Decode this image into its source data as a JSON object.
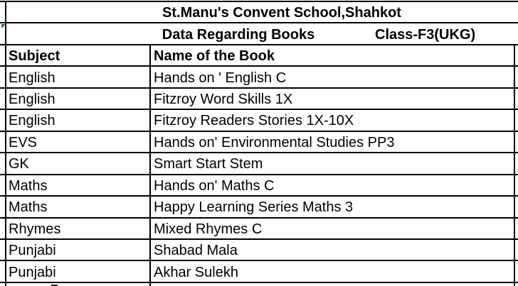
{
  "sheet": {
    "title": "St.Manu's Convent School,Shahkot",
    "subtitle": "Data Regarding Books",
    "class_label": "Class-F3(UKG)",
    "columns": [
      "Subject",
      "Name of the Book"
    ],
    "rows": [
      {
        "subject": "English",
        "book": "Hands on ' English C"
      },
      {
        "subject": "English",
        "book": "Fitzroy Word Skills 1X"
      },
      {
        "subject": "English",
        "book": "Fitzroy Readers Stories 1X-10X"
      },
      {
        "subject": "EVS",
        "book": "Hands on' Environmental Studies PP3"
      },
      {
        "subject": "GK",
        "book": "Smart Start Stem"
      },
      {
        "subject": "Maths",
        "book": "Hands on' Maths C"
      },
      {
        "subject": "Maths",
        "book": "Happy Learning Series Maths 3"
      },
      {
        "subject": "Rhymes",
        "book": "Mixed Rhymes C"
      },
      {
        "subject": "Punjabi",
        "book": "Shabad Mala"
      },
      {
        "subject": "Punjabi",
        "book": "Akhar Sulekh"
      }
    ],
    "colors": {
      "grid_border": "#000000",
      "error_indicator": "#1E7145",
      "background": "#FFFFFF",
      "text": "#000000"
    }
  }
}
